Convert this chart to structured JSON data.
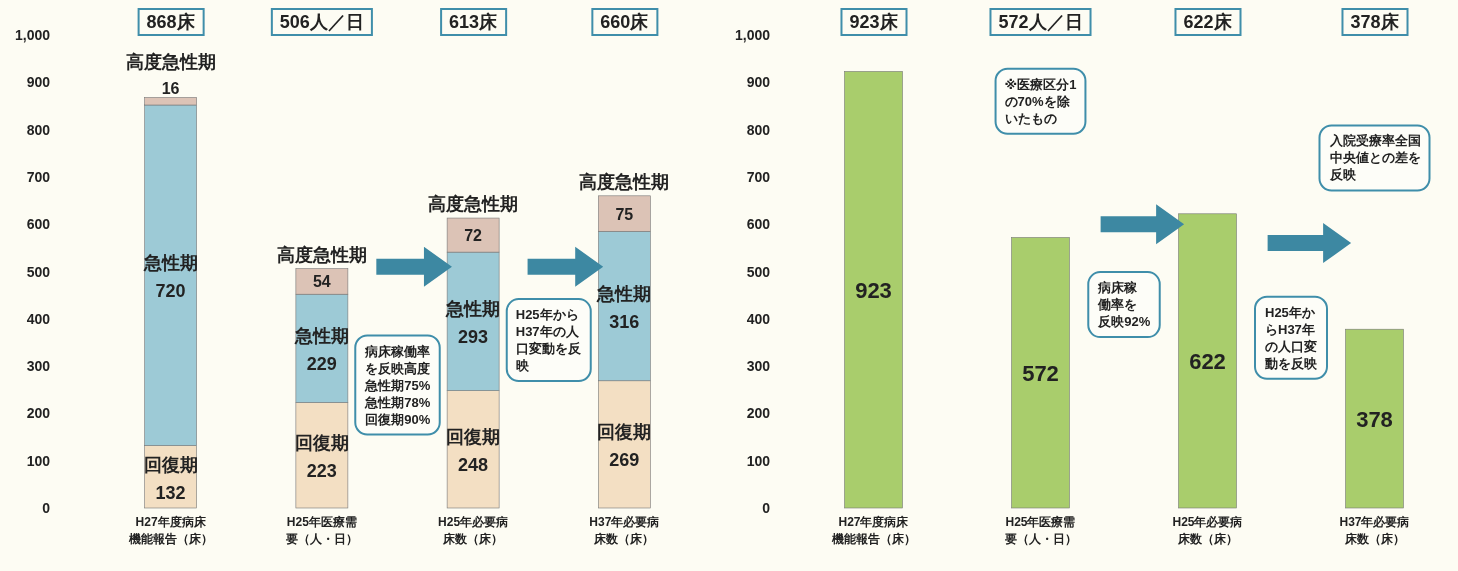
{
  "chart_data": [
    {
      "type": "bar",
      "stacked": true,
      "categories": [
        "H27年度病床機能報告（床）",
        "H25年医療需要（人・日）",
        "H25年必要病床数（床）",
        "H37年必要病床数（床）"
      ],
      "series": [
        {
          "name": "回復期",
          "color": "#f3dfc3",
          "values": [
            132,
            223,
            248,
            269
          ]
        },
        {
          "name": "急性期",
          "color": "#9dcad6",
          "values": [
            720,
            229,
            293,
            316
          ]
        },
        {
          "name": "高度急性期",
          "color": "#dcc3b6",
          "values": [
            16,
            54,
            72,
            75
          ]
        }
      ],
      "data_labels": true,
      "ylim": [
        0,
        1000
      ],
      "yticks": [
        0,
        100,
        200,
        300,
        400,
        500,
        600,
        700,
        800,
        900,
        {
          "value": 1000,
          "label": "1,000"
        }
      ],
      "annotations": [
        "868床",
        "506人／日",
        "613床",
        "660床",
        "病床稼働率を反映高度急性期75%急性期78%回復期90%",
        "H25年からH37年の人口変動を反映"
      ]
    },
    {
      "type": "bar",
      "categories": [
        "H27年度病床機能報告（床）",
        "H25年医療需要（人・日）",
        "H25年必要病床数（床）",
        "H37年必要病床数（床）"
      ],
      "series": [
        {
          "color": "#a9cd6c",
          "values": [
            923,
            572,
            622,
            378
          ]
        }
      ],
      "data_labels": true,
      "ylim": [
        0,
        1000
      ],
      "yticks": [
        0,
        100,
        200,
        300,
        400,
        500,
        600,
        700,
        800,
        900,
        {
          "value": 1000,
          "label": "1,000"
        }
      ],
      "annotations": [
        "923床",
        "572人／日",
        "622床",
        "378床",
        "※医療区分1の70%を除いたもの",
        "病床稼働率を反映92%",
        "H25年からH37年の人口変動を反映",
        "入院受療率全国中央値との差を反映"
      ]
    }
  ]
}
